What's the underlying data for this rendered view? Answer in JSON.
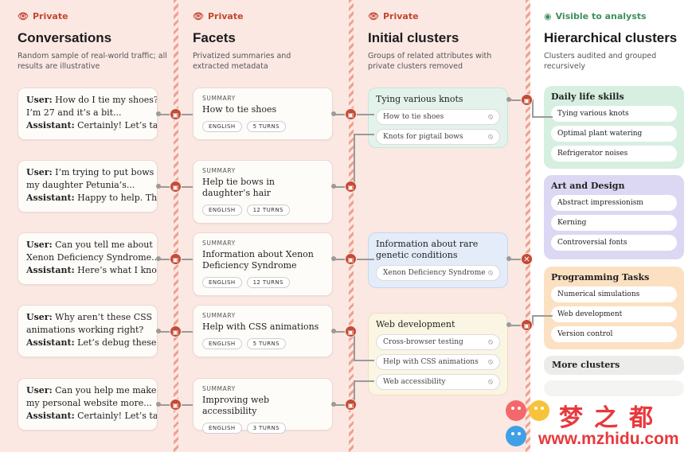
{
  "columns": {
    "conversations": {
      "tag": "Private",
      "title": "Conversations",
      "subtitle": "Random sample of real-world traffic; all results are illustrative"
    },
    "facets": {
      "tag": "Private",
      "title": "Facets",
      "subtitle": "Privatized summaries and extracted metadata"
    },
    "initial": {
      "tag": "Private",
      "title": "Initial clusters",
      "subtitle": "Groups of related attributes with private clusters removed"
    },
    "hierarchical": {
      "tag": "Visible to analysts",
      "title": "Hierarchical clusters",
      "subtitle": "Clusters audited and grouped recursively"
    }
  },
  "conversations": [
    {
      "user": "How do I tie my shoes?",
      "user2": "I’m 27 and it’s a bit...",
      "assistant": "Certainly! Let’s ta..."
    },
    {
      "user": "I’m trying to put bows in",
      "user2": "my daughter Petunia’s...",
      "assistant": "Happy to help. Th..."
    },
    {
      "user": "Can you tell me about",
      "user2": "Xenon Deficiency Syndrome..",
      "assistant": "Here’s what I kno..."
    },
    {
      "user": "Why aren’t these CSS",
      "user2": "animations working right?",
      "assistant": "Let’s debug these..."
    },
    {
      "user": "Can you help me make",
      "user2": "my personal website more...",
      "assistant": "Certainly! Let’s ta..."
    }
  ],
  "labels": {
    "user": "User:",
    "assistant": "Assistant:",
    "summary": "SUMMARY"
  },
  "facets": [
    {
      "summary": "How to tie shoes",
      "lang": "ENGLISH",
      "turns": "5 TURNS"
    },
    {
      "summary": "Help tie bows in daughter’s hair",
      "lang": "ENGLISH",
      "turns": "12 TURNS"
    },
    {
      "summary": "Information about Xenon Deficiency Syndrome",
      "lang": "ENGLISH",
      "turns": "12 TURNS"
    },
    {
      "summary": "Help with CSS animations",
      "lang": "ENGLISH",
      "turns": "5 TURNS"
    },
    {
      "summary": "Improving web accessibility",
      "lang": "ENGLISH",
      "turns": "3 TURNS"
    }
  ],
  "initial_clusters": [
    {
      "title": "Tying various knots",
      "items": [
        "How to tie shoes",
        "Knots for pigtail bows"
      ]
    },
    {
      "title": "Information about rare genetic conditions",
      "items": [
        "Xenon Deficiency Syndrome"
      ]
    },
    {
      "title": "Web development",
      "items": [
        "Cross-browser testing",
        "Help with CSS animations",
        "Web accessibility"
      ]
    }
  ],
  "hierarchical_clusters": [
    {
      "title": "Daily life skills",
      "color": "#d6efe1",
      "items": [
        "Tying various knots",
        "Optimal plant watering",
        "Refrigerator noises"
      ]
    },
    {
      "title": "Art and Design",
      "color": "#dcd8f3",
      "items": [
        "Abstract impressionism",
        "Kerning",
        "Controversial fonts"
      ]
    },
    {
      "title": "Programming Tasks",
      "color": "#fbe1c2",
      "items": [
        "Numerical simulations",
        "Web development",
        "Version control"
      ]
    },
    {
      "title": "More clusters",
      "color": "#ececea",
      "items": []
    }
  ],
  "watermark": {
    "brand": "梦之都",
    "url": "www.mzhidu.com"
  },
  "colors": {
    "private": "#c5462f",
    "visible": "#3f8f5a",
    "lock": "#c44b36",
    "background": "#fbe8e3"
  },
  "icons": {
    "private": "eye-slash-icon",
    "visible": "eye-icon",
    "lock": "lock-icon",
    "blocked": "x-icon"
  }
}
